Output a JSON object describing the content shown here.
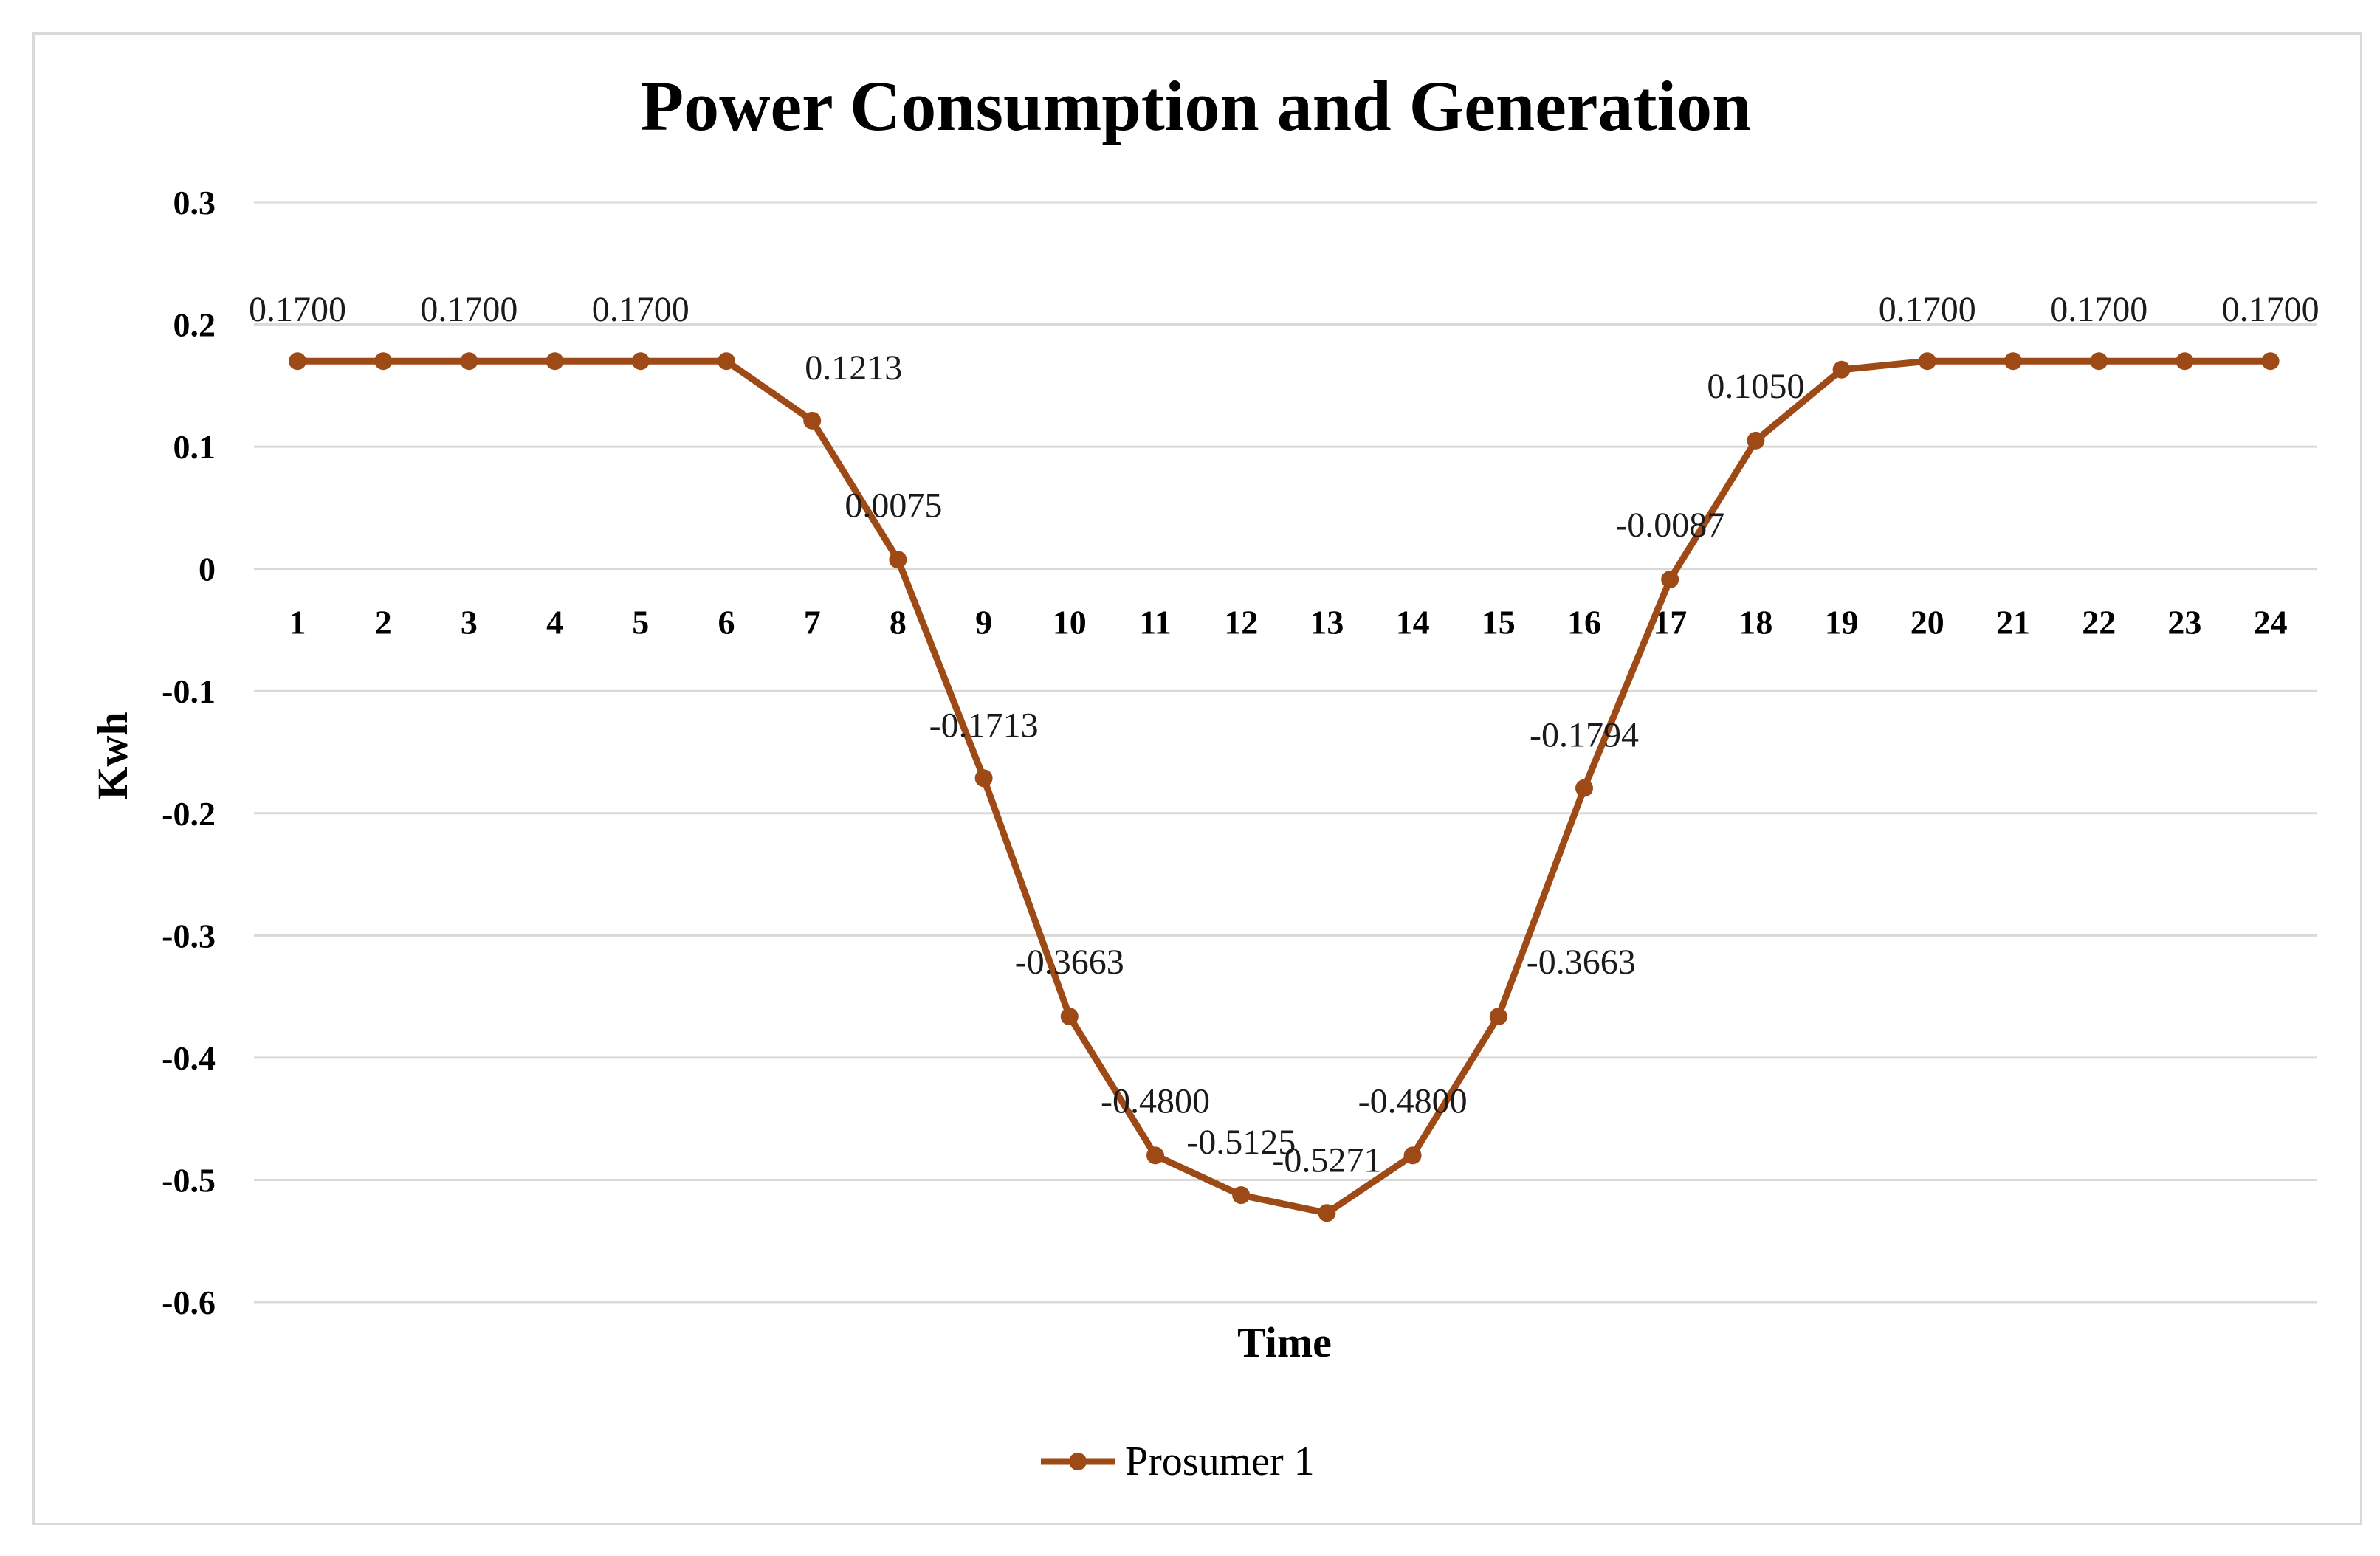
{
  "chart_data": {
    "type": "line",
    "title": "Power Consumption and Generation",
    "xlabel": "Time",
    "ylabel": "Kwh",
    "ylim": [
      -0.6,
      0.3
    ],
    "yticks": [
      0.3,
      0.2,
      0.1,
      0,
      -0.1,
      -0.2,
      -0.3,
      -0.4,
      -0.5,
      -0.6
    ],
    "ytick_labels": [
      "0.3",
      "0.2",
      "0.1",
      "0",
      "-0.1",
      "-0.2",
      "-0.3",
      "-0.4",
      "-0.5",
      "-0.6"
    ],
    "grid": true,
    "legend_position": "bottom",
    "categories": [
      "1",
      "2",
      "3",
      "4",
      "5",
      "6",
      "7",
      "8",
      "9",
      "10",
      "11",
      "12",
      "13",
      "14",
      "15",
      "16",
      "17",
      "18",
      "19",
      "20",
      "21",
      "22",
      "23",
      "24"
    ],
    "series": [
      {
        "name": "Prosumer 1",
        "color": "#9e4a16",
        "values": [
          0.17,
          0.17,
          0.17,
          0.17,
          0.17,
          0.17,
          0.1213,
          0.0075,
          -0.1713,
          -0.3663,
          -0.48,
          -0.5125,
          -0.5271,
          -0.48,
          -0.3663,
          -0.1794,
          -0.0087,
          0.105,
          0.163,
          0.17,
          0.17,
          0.17,
          0.17,
          0.17
        ],
        "data_labels": [
          {
            "index": 0,
            "text": "0.1700"
          },
          {
            "index": 2,
            "text": "0.1700"
          },
          {
            "index": 4,
            "text": "0.1700"
          },
          {
            "index": 6,
            "text": "0.1213"
          },
          {
            "index": 7,
            "text": "0.0075"
          },
          {
            "index": 8,
            "text": "-0.1713"
          },
          {
            "index": 9,
            "text": "-0.3663"
          },
          {
            "index": 10,
            "text": "-0.4800"
          },
          {
            "index": 11,
            "text": "-0.5125"
          },
          {
            "index": 12,
            "text": "-0.5271"
          },
          {
            "index": 13,
            "text": "-0.4800"
          },
          {
            "index": 14,
            "text": "-0.3663"
          },
          {
            "index": 15,
            "text": "-0.1794"
          },
          {
            "index": 16,
            "text": "-0.0087"
          },
          {
            "index": 17,
            "text": "0.1050"
          },
          {
            "index": 19,
            "text": "0.1700"
          },
          {
            "index": 21,
            "text": "0.1700"
          },
          {
            "index": 23,
            "text": "0.1700"
          }
        ]
      }
    ]
  }
}
